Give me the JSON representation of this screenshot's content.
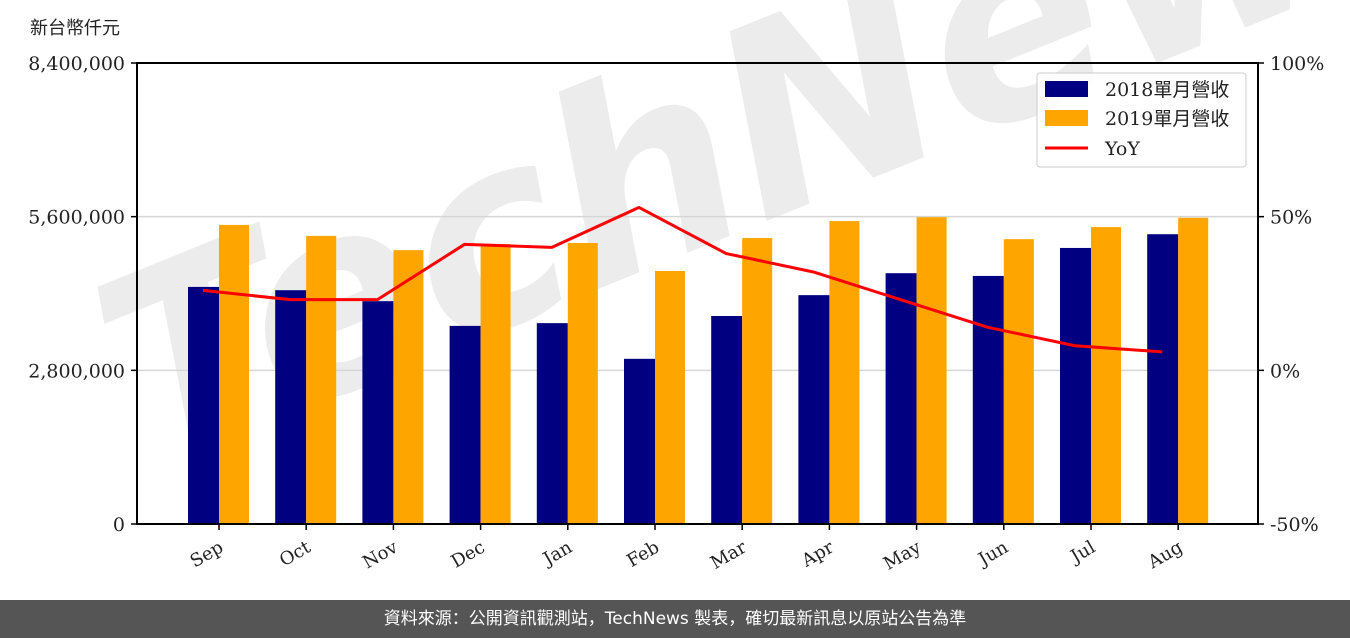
{
  "chart_data": {
    "type": "bar",
    "title": "",
    "ylabel": "新台幣仟元",
    "xlabel": "",
    "categories": [
      "Sep",
      "Oct",
      "Nov",
      "Dec",
      "Jan",
      "Feb",
      "Mar",
      "Apr",
      "May",
      "Jun",
      "Jul",
      "Aug"
    ],
    "series": [
      {
        "name": "2018單月營收",
        "type": "bar",
        "color": "#000080",
        "values": [
          4320000,
          4260000,
          4060000,
          3610000,
          3660000,
          3010000,
          3790000,
          4170000,
          4570000,
          4520000,
          5030000,
          5280000
        ]
      },
      {
        "name": "2019單月營收",
        "type": "bar",
        "color": "#FFA500",
        "values": [
          5450000,
          5250000,
          4990000,
          5100000,
          5120000,
          4610000,
          5210000,
          5520000,
          5590000,
          5190000,
          5410000,
          5580000
        ]
      },
      {
        "name": "YoY",
        "type": "line",
        "axis": "right",
        "color": "#FF0000",
        "values": [
          26,
          23,
          23,
          41,
          40,
          53,
          38,
          32,
          23,
          14,
          8,
          6
        ]
      }
    ],
    "ylim": [
      0,
      8400000
    ],
    "y_ticks": [
      "0",
      "2,800,000",
      "5,600,000",
      "8,400,000"
    ],
    "y_tick_values": [
      0,
      2800000,
      5600000,
      8400000
    ],
    "y2lim": [
      -50,
      100
    ],
    "y2_ticks": [
      "-50%",
      "0%",
      "50%",
      "100%"
    ],
    "y2_tick_values": [
      -50,
      0,
      50,
      100
    ],
    "grid": true,
    "legend_position": "upper right",
    "watermark": "TechNews"
  },
  "footer": {
    "source_text": "資料來源：公開資訊觀測站，TechNews 製表，確切最新訊息以原站公告為準"
  }
}
